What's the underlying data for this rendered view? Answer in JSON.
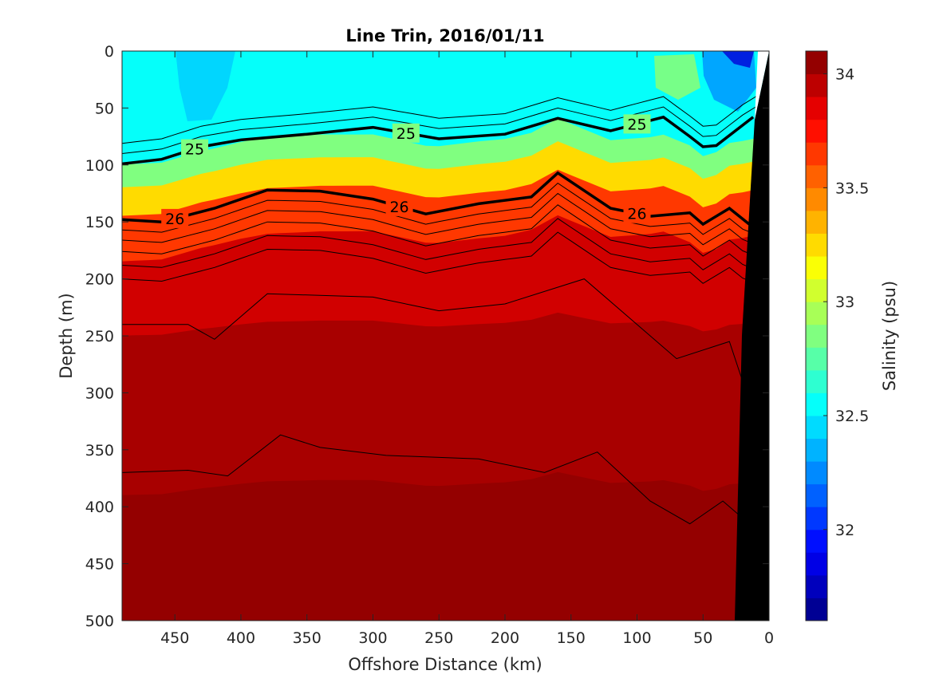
{
  "chart_data": {
    "type": "heatmap",
    "title": "Line Trin, 2016/01/11",
    "xlabel": "Offshore Distance (km)",
    "ylabel": "Depth (m)",
    "xlim": [
      490,
      0
    ],
    "ylim": [
      0,
      500
    ],
    "x_reversed": true,
    "y_reversed": true,
    "x_ticks": [
      450,
      400,
      350,
      300,
      250,
      200,
      150,
      100,
      50,
      0
    ],
    "y_ticks": [
      0,
      50,
      100,
      150,
      200,
      250,
      300,
      350,
      400,
      450,
      500
    ],
    "colorbar": {
      "label": "Salinity (psu)",
      "limits": [
        31.6,
        34.1
      ],
      "ticks": [
        32,
        32.5,
        33,
        33.5,
        34
      ],
      "colormap": "jet"
    },
    "salinity_layers": [
      {
        "upper_depth": 0,
        "psu": 32.55
      },
      {
        "upper_depth": 80,
        "psu": 32.85
      },
      {
        "upper_depth": 100,
        "psu": 33.25
      },
      {
        "upper_depth": 125,
        "psu": 33.65
      },
      {
        "upper_depth": 165,
        "psu": 33.9
      },
      {
        "upper_depth": 240,
        "psu": 34.0
      },
      {
        "upper_depth": 380,
        "psu": 34.05
      }
    ],
    "density_contours": [
      {
        "label": "25",
        "points": [
          [
            490,
            99
          ],
          [
            460,
            95
          ],
          [
            430,
            84
          ],
          [
            400,
            78
          ],
          [
            350,
            73
          ],
          [
            300,
            67
          ],
          [
            250,
            77
          ],
          [
            200,
            73
          ],
          [
            160,
            59
          ],
          [
            120,
            70
          ],
          [
            80,
            58
          ],
          [
            60,
            75
          ],
          [
            50,
            84
          ],
          [
            40,
            83
          ],
          [
            12,
            58
          ]
        ]
      },
      {
        "label": "26",
        "points": [
          [
            490,
            148
          ],
          [
            460,
            150
          ],
          [
            420,
            138
          ],
          [
            380,
            122
          ],
          [
            340,
            123
          ],
          [
            300,
            130
          ],
          [
            260,
            143
          ],
          [
            220,
            134
          ],
          [
            180,
            128
          ],
          [
            160,
            107
          ],
          [
            120,
            138
          ],
          [
            90,
            145
          ],
          [
            60,
            142
          ],
          [
            50,
            152
          ],
          [
            30,
            138
          ],
          [
            15,
            152
          ]
        ]
      }
    ]
  }
}
